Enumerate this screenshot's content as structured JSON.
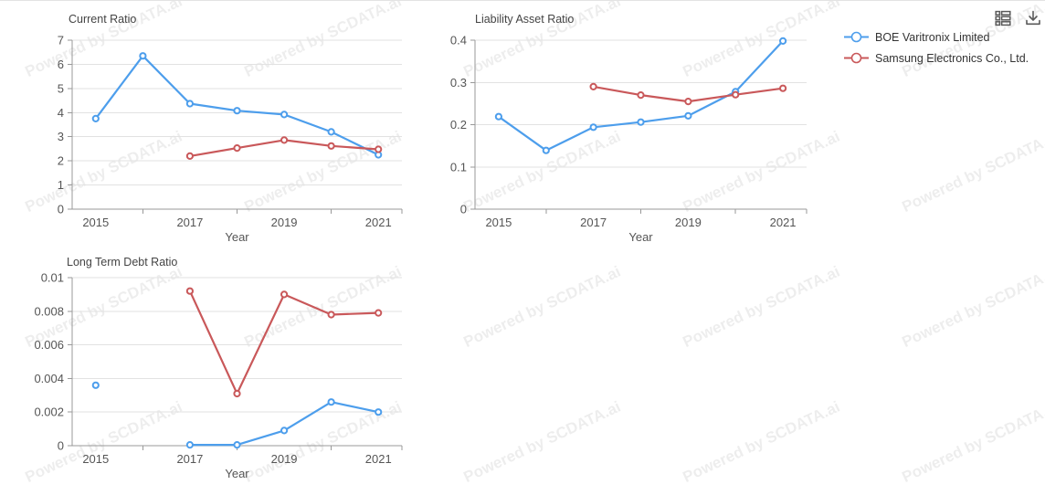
{
  "watermark": {
    "text": "Powered by SCDATA.ai"
  },
  "toolbar": {
    "icons": [
      {
        "name": "data-view-icon",
        "label": "data table view"
      },
      {
        "name": "download-icon",
        "label": "download"
      }
    ]
  },
  "legend": {
    "position": "top-right",
    "items": [
      {
        "label": "BOE Varitronix Limited",
        "color": "#4d9eec"
      },
      {
        "label": "Samsung Electronics Co., Ltd.",
        "color": "#c9585a"
      }
    ]
  },
  "chart_data": [
    {
      "type": "line",
      "title": "Current Ratio",
      "xlabel": "Year",
      "grid": true,
      "categories": [
        "2015",
        "2016",
        "2017",
        "2018",
        "2019",
        "2020",
        "2021"
      ],
      "xticks": [
        {
          "index": 0,
          "label": "2015"
        },
        {
          "index": 2,
          "label": "2017"
        },
        {
          "index": 4,
          "label": "2019"
        },
        {
          "index": 6,
          "label": "2021"
        }
      ],
      "ylim": [
        0,
        7
      ],
      "ytick_values": [
        0,
        1,
        2,
        3,
        4,
        5,
        6,
        7
      ],
      "ytick_labels": [
        "0",
        "1",
        "2",
        "3",
        "4",
        "5",
        "6",
        "7"
      ],
      "series": [
        {
          "name": "BOE Varitronix Limited",
          "color": "#4d9eec",
          "values": [
            3.75,
            6.35,
            4.37,
            4.08,
            3.92,
            3.2,
            2.25
          ]
        },
        {
          "name": "Samsung Electronics Co., Ltd.",
          "color": "#c9585a",
          "values": [
            null,
            null,
            2.2,
            2.53,
            2.86,
            2.62,
            2.48
          ]
        }
      ]
    },
    {
      "type": "line",
      "title": "Liability Asset Ratio",
      "xlabel": "Year",
      "grid": true,
      "categories": [
        "2015",
        "2016",
        "2017",
        "2018",
        "2019",
        "2020",
        "2021"
      ],
      "xticks": [
        {
          "index": 0,
          "label": "2015"
        },
        {
          "index": 2,
          "label": "2017"
        },
        {
          "index": 4,
          "label": "2019"
        },
        {
          "index": 6,
          "label": "2021"
        }
      ],
      "ylim": [
        0,
        0.4
      ],
      "ytick_values": [
        0,
        0.1,
        0.2,
        0.3,
        0.4
      ],
      "ytick_labels": [
        "0",
        "0.1",
        "0.2",
        "0.3",
        "0.4"
      ],
      "series": [
        {
          "name": "BOE Varitronix Limited",
          "color": "#4d9eec",
          "values": [
            0.219,
            0.139,
            0.194,
            0.206,
            0.221,
            0.278,
            0.398
          ]
        },
        {
          "name": "Samsung Electronics Co., Ltd.",
          "color": "#c9585a",
          "values": [
            null,
            null,
            0.29,
            0.27,
            0.255,
            0.271,
            0.286
          ]
        }
      ]
    },
    {
      "type": "line",
      "title": "Long Term Debt Ratio",
      "xlabel": "Year",
      "grid": true,
      "categories": [
        "2015",
        "2016",
        "2017",
        "2018",
        "2019",
        "2020",
        "2021"
      ],
      "xticks": [
        {
          "index": 0,
          "label": "2015"
        },
        {
          "index": 2,
          "label": "2017"
        },
        {
          "index": 4,
          "label": "2019"
        },
        {
          "index": 6,
          "label": "2021"
        }
      ],
      "ylim": [
        0,
        0.01
      ],
      "ytick_values": [
        0,
        0.002,
        0.004,
        0.006,
        0.008,
        0.01
      ],
      "ytick_labels": [
        "0",
        "0.002",
        "0.004",
        "0.006",
        "0.008",
        "0.01"
      ],
      "series": [
        {
          "name": "BOE Varitronix Limited",
          "color": "#4d9eec",
          "values": [
            0.0036,
            null,
            5e-05,
            5e-05,
            0.0009,
            0.0026,
            0.002
          ]
        },
        {
          "name": "Samsung Electronics Co., Ltd.",
          "color": "#c9585a",
          "values": [
            null,
            null,
            0.0092,
            0.0031,
            0.009,
            0.0078,
            0.0079
          ]
        }
      ]
    }
  ],
  "colors": {
    "series_blue": "#4d9eec",
    "series_red": "#c9585a",
    "gridline": "#e2e2e2",
    "axis": "#999999",
    "icon": "#5a5a5a"
  }
}
